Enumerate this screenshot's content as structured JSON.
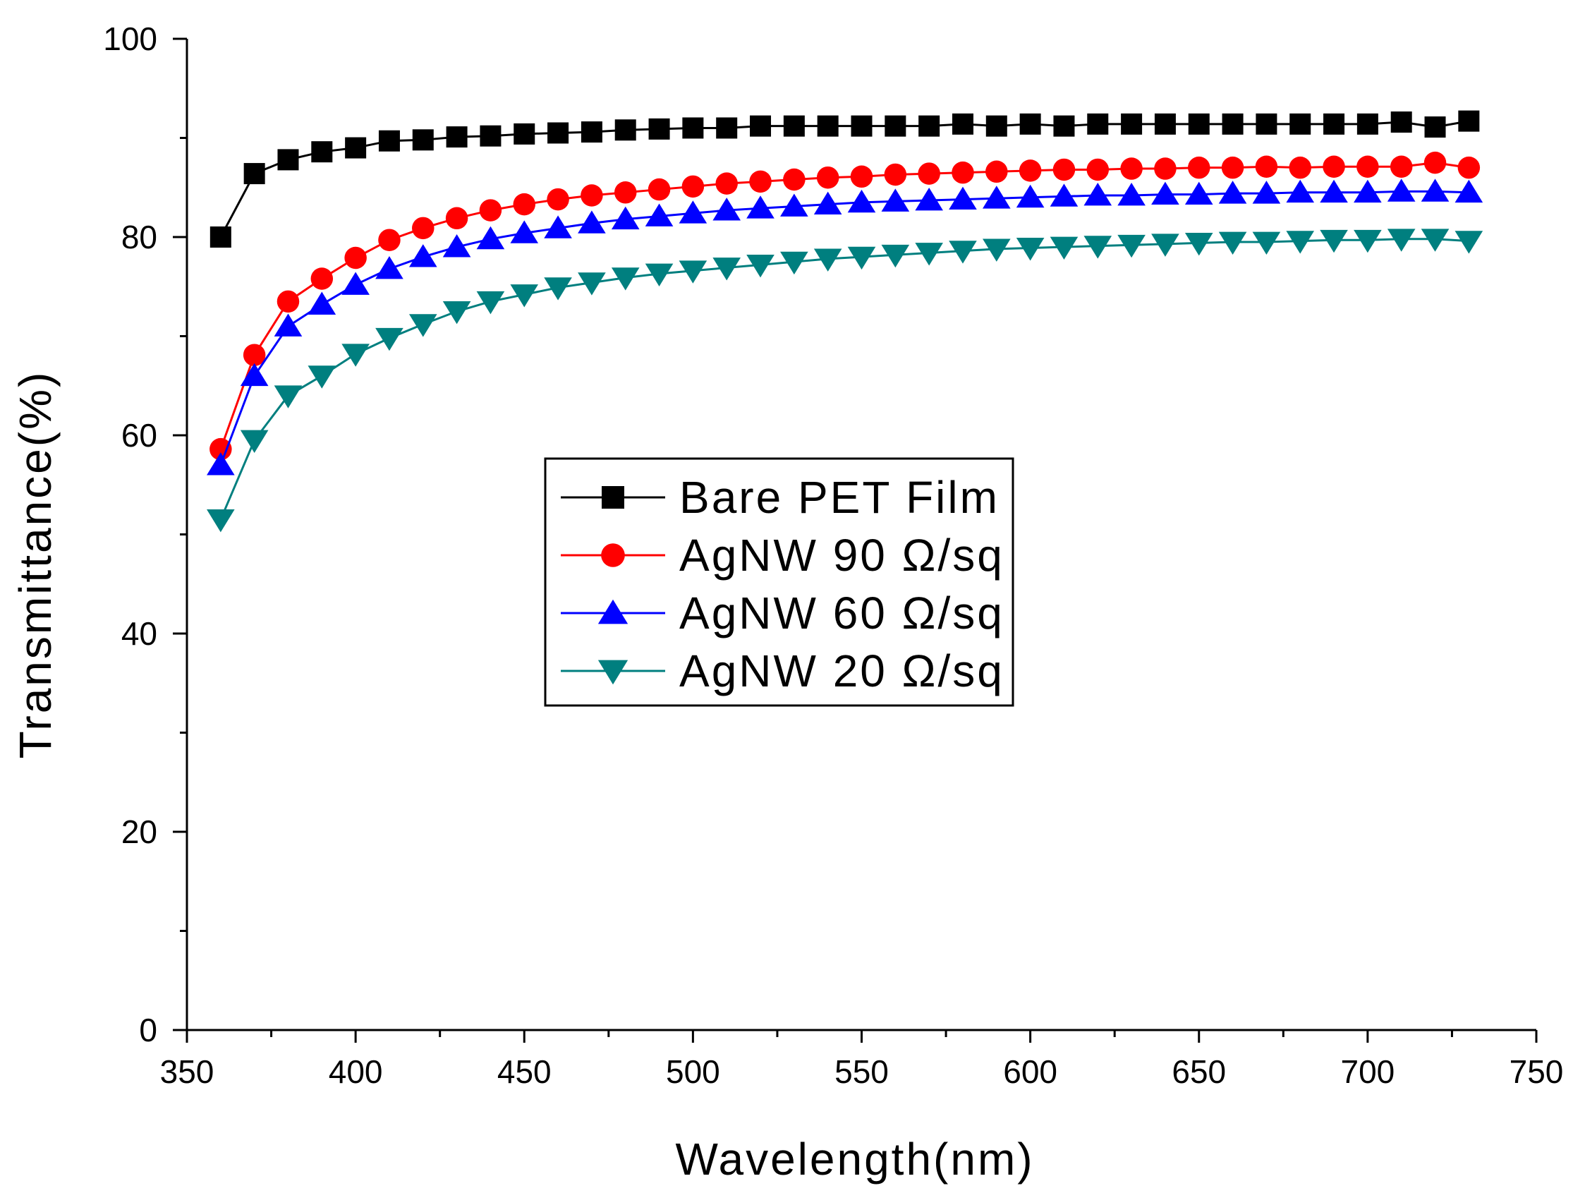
{
  "chart_data": {
    "type": "line",
    "title": "",
    "xlabel": "Wavelength(nm)",
    "ylabel": "Transmittance(%)",
    "xlim": [
      350,
      750
    ],
    "ylim": [
      0,
      100
    ],
    "xticks": [
      350,
      400,
      450,
      500,
      550,
      600,
      650,
      700,
      750
    ],
    "yticks": [
      0,
      20,
      40,
      60,
      80,
      100
    ],
    "x_tick_labels": [
      "350",
      "400",
      "450",
      "500",
      "550",
      "600",
      "650",
      "700",
      "750"
    ],
    "y_tick_labels": [
      "0",
      "20",
      "40",
      "60",
      "80",
      "100"
    ],
    "grid": false,
    "legend_position": "center",
    "x": [
      360,
      370,
      380,
      390,
      400,
      410,
      420,
      430,
      440,
      450,
      460,
      470,
      480,
      490,
      500,
      510,
      520,
      530,
      540,
      550,
      560,
      570,
      580,
      590,
      600,
      610,
      620,
      630,
      640,
      650,
      660,
      670,
      680,
      690,
      700,
      710,
      720,
      730
    ],
    "series": [
      {
        "name": "Bare PET Film",
        "color": "#000000",
        "marker": "square",
        "values": [
          80.0,
          86.4,
          87.8,
          88.6,
          89.0,
          89.7,
          89.8,
          90.1,
          90.2,
          90.4,
          90.5,
          90.6,
          90.8,
          90.9,
          91.0,
          91.0,
          91.2,
          91.2,
          91.2,
          91.2,
          91.2,
          91.2,
          91.4,
          91.2,
          91.4,
          91.2,
          91.4,
          91.4,
          91.4,
          91.4,
          91.4,
          91.4,
          91.4,
          91.4,
          91.4,
          91.6,
          91.1,
          91.7
        ]
      },
      {
        "name": "AgNW 90 Ω/sq",
        "color": "#ff0000",
        "marker": "circle",
        "values": [
          58.6,
          68.1,
          73.5,
          75.8,
          77.9,
          79.7,
          80.9,
          81.9,
          82.7,
          83.3,
          83.8,
          84.2,
          84.5,
          84.8,
          85.1,
          85.4,
          85.6,
          85.8,
          86.0,
          86.1,
          86.3,
          86.4,
          86.5,
          86.6,
          86.7,
          86.8,
          86.8,
          86.9,
          86.9,
          87.0,
          87.0,
          87.1,
          87.0,
          87.1,
          87.1,
          87.1,
          87.5,
          87.0
        ]
      },
      {
        "name": "AgNW 60 Ω/sq",
        "color": "#0000ff",
        "marker": "triangle-up",
        "values": [
          57.0,
          66.0,
          71.0,
          73.2,
          75.2,
          76.8,
          78.0,
          79.0,
          79.8,
          80.4,
          80.9,
          81.4,
          81.8,
          82.1,
          82.4,
          82.7,
          82.9,
          83.1,
          83.3,
          83.5,
          83.6,
          83.7,
          83.8,
          83.9,
          84.0,
          84.1,
          84.2,
          84.2,
          84.3,
          84.3,
          84.4,
          84.4,
          84.5,
          84.5,
          84.5,
          84.6,
          84.6,
          84.5
        ]
      },
      {
        "name": "AgNW 20 Ω/sq",
        "color": "#007f7f",
        "marker": "triangle-down",
        "values": [
          51.5,
          59.5,
          64.0,
          66.0,
          68.2,
          69.8,
          71.2,
          72.5,
          73.5,
          74.2,
          74.9,
          75.4,
          75.9,
          76.3,
          76.6,
          76.9,
          77.2,
          77.5,
          77.8,
          78.0,
          78.2,
          78.4,
          78.6,
          78.8,
          78.9,
          79.0,
          79.1,
          79.2,
          79.3,
          79.4,
          79.5,
          79.5,
          79.6,
          79.7,
          79.7,
          79.8,
          79.8,
          79.6
        ]
      }
    ]
  }
}
